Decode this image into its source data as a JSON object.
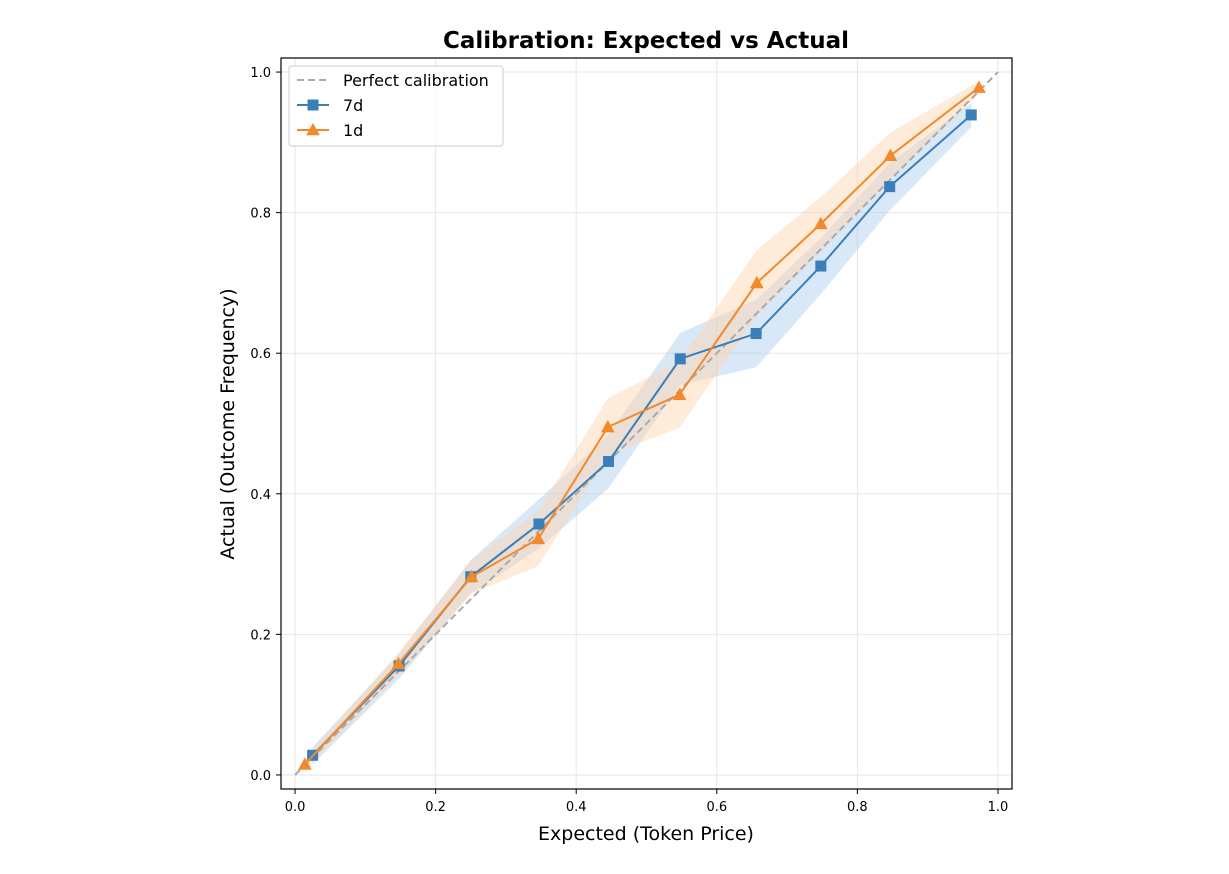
{
  "chart_data": {
    "type": "line",
    "title": "Calibration: Expected vs Actual",
    "xlabel": "Expected (Token Price)",
    "ylabel": "Actual (Outcome Frequency)",
    "xlim": [
      -0.02,
      1.02
    ],
    "ylim": [
      -0.02,
      1.02
    ],
    "xticks": [
      "0.0",
      "0.2",
      "0.4",
      "0.6",
      "0.8",
      "1.0"
    ],
    "yticks": [
      "0.0",
      "0.2",
      "0.4",
      "0.6",
      "0.8",
      "1.0"
    ],
    "grid": true,
    "legend_position": "top-left",
    "reference": {
      "name": "Perfect calibration",
      "x": [
        0,
        1
      ],
      "y": [
        0,
        1
      ],
      "color": "#aaaaaa",
      "style": "dashed"
    },
    "series": [
      {
        "name": "7d",
        "marker": "square",
        "color": "#3a7fba",
        "band_color": "#aaccec",
        "x": [
          0.025,
          0.148,
          0.25,
          0.347,
          0.446,
          0.548,
          0.656,
          0.748,
          0.846,
          0.962
        ],
        "y": [
          0.028,
          0.155,
          0.282,
          0.357,
          0.446,
          0.592,
          0.628,
          0.724,
          0.837,
          0.939
        ],
        "lower": [
          0.015,
          0.137,
          0.258,
          0.322,
          0.408,
          0.555,
          0.58,
          0.684,
          0.803,
          0.922
        ],
        "upper": [
          0.04,
          0.172,
          0.306,
          0.392,
          0.484,
          0.629,
          0.676,
          0.764,
          0.871,
          0.956
        ]
      },
      {
        "name": "1d",
        "marker": "triangle",
        "color": "#f28a2c",
        "band_color": "#ffd3ac",
        "x": [
          0.014,
          0.147,
          0.251,
          0.346,
          0.445,
          0.547,
          0.657,
          0.748,
          0.847,
          0.973
        ],
        "y": [
          0.015,
          0.158,
          0.282,
          0.336,
          0.495,
          0.541,
          0.7,
          0.784,
          0.881,
          0.978
        ],
        "lower": [
          0.007,
          0.142,
          0.258,
          0.297,
          0.455,
          0.494,
          0.653,
          0.745,
          0.848,
          0.969
        ],
        "upper": [
          0.023,
          0.174,
          0.306,
          0.375,
          0.536,
          0.588,
          0.747,
          0.822,
          0.914,
          0.987
        ]
      }
    ]
  }
}
